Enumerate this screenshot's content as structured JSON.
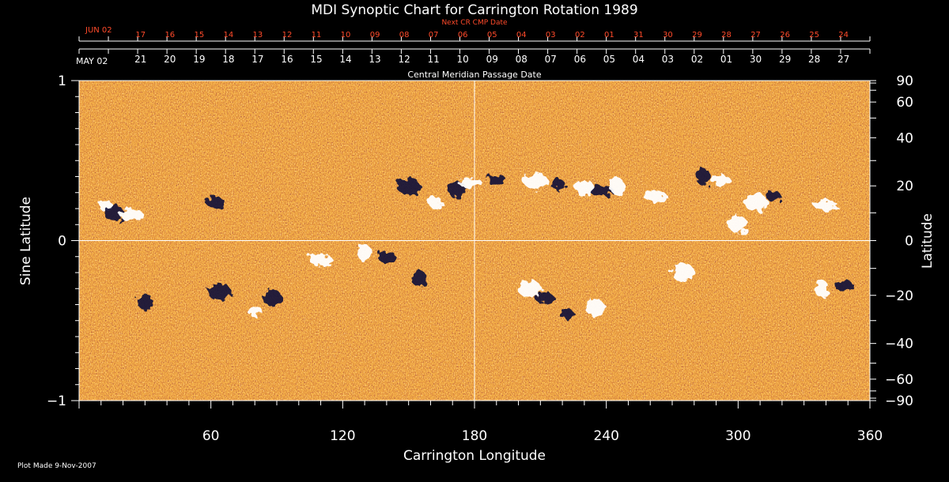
{
  "chart_data": {
    "type": "heatmap",
    "title": "MDI Synoptic Chart for Carrington Rotation 1989",
    "xlabel": "Carrington Longitude",
    "ylabel": "Sine Latitude",
    "ylabel_right": "Latitude",
    "xlim": [
      0,
      360
    ],
    "ylim": [
      -1,
      1
    ],
    "x_ticks": [
      {
        "value": 60,
        "label": "60"
      },
      {
        "value": 120,
        "label": "120"
      },
      {
        "value": 180,
        "label": "180"
      },
      {
        "value": 240,
        "label": "240"
      },
      {
        "value": 300,
        "label": "300"
      },
      {
        "value": 360,
        "label": "360"
      }
    ],
    "y_ticks": [
      {
        "value": 1,
        "label": "1"
      },
      {
        "value": 0,
        "label": "0"
      },
      {
        "value": -1,
        "label": "−1"
      }
    ],
    "lat_ticks": [
      {
        "value": 90,
        "label": "90"
      },
      {
        "value": 60,
        "label": "60"
      },
      {
        "value": 40,
        "label": "40"
      },
      {
        "value": 20,
        "label": "20"
      },
      {
        "value": 0,
        "label": "0"
      },
      {
        "value": -20,
        "label": "−20"
      },
      {
        "value": -40,
        "label": "−40"
      },
      {
        "value": -60,
        "label": "−60"
      },
      {
        "value": -90,
        "label": "−90"
      }
    ],
    "reference_lines": {
      "longitude": 180,
      "sine_latitude": 0
    },
    "top_axis_label": "Central Meridian Passage Date",
    "cmp_month_label": "MAY 02",
    "cmp_dates": [
      "21",
      "20",
      "19",
      "18",
      "17",
      "16",
      "15",
      "14",
      "13",
      "12",
      "11",
      "10",
      "09",
      "08",
      "07",
      "06",
      "05",
      "04",
      "03",
      "02",
      "01",
      "30",
      "29",
      "28",
      "27"
    ],
    "next_cr_label": "Next CR CMP Date",
    "next_cr_month_label": "JUN 02",
    "next_cr_dates": [
      "17",
      "16",
      "15",
      "14",
      "13",
      "12",
      "11",
      "10",
      "09",
      "08",
      "07",
      "06",
      "05",
      "04",
      "03",
      "02",
      "01",
      "31",
      "30",
      "29",
      "28",
      "27",
      "26",
      "25",
      "24"
    ],
    "colormap": [
      "#11113a",
      "#8a1a10",
      "#ff7a18",
      "#ffe9a8",
      "#ffffff"
    ],
    "active_regions": [
      {
        "lon": 12,
        "sinlat": 0.22,
        "polarity": "positive"
      },
      {
        "lon": 16,
        "sinlat": 0.17,
        "polarity": "negative"
      },
      {
        "lon": 24,
        "sinlat": 0.16,
        "polarity": "positive"
      },
      {
        "lon": 30,
        "sinlat": -0.38,
        "polarity": "negative"
      },
      {
        "lon": 62,
        "sinlat": 0.24,
        "polarity": "negative"
      },
      {
        "lon": 64,
        "sinlat": -0.32,
        "polarity": "negative"
      },
      {
        "lon": 80,
        "sinlat": -0.44,
        "polarity": "positive"
      },
      {
        "lon": 88,
        "sinlat": -0.36,
        "polarity": "negative"
      },
      {
        "lon": 110,
        "sinlat": -0.12,
        "polarity": "positive"
      },
      {
        "lon": 130,
        "sinlat": -0.08,
        "polarity": "positive"
      },
      {
        "lon": 140,
        "sinlat": -0.1,
        "polarity": "negative"
      },
      {
        "lon": 150,
        "sinlat": 0.34,
        "polarity": "negative"
      },
      {
        "lon": 162,
        "sinlat": 0.24,
        "polarity": "positive"
      },
      {
        "lon": 172,
        "sinlat": 0.32,
        "polarity": "negative"
      },
      {
        "lon": 178,
        "sinlat": 0.36,
        "polarity": "positive"
      },
      {
        "lon": 155,
        "sinlat": -0.24,
        "polarity": "negative"
      },
      {
        "lon": 190,
        "sinlat": 0.38,
        "polarity": "negative"
      },
      {
        "lon": 208,
        "sinlat": 0.37,
        "polarity": "positive"
      },
      {
        "lon": 218,
        "sinlat": 0.35,
        "polarity": "negative"
      },
      {
        "lon": 230,
        "sinlat": 0.33,
        "polarity": "positive"
      },
      {
        "lon": 238,
        "sinlat": 0.31,
        "polarity": "negative"
      },
      {
        "lon": 245,
        "sinlat": 0.34,
        "polarity": "positive"
      },
      {
        "lon": 212,
        "sinlat": -0.36,
        "polarity": "negative"
      },
      {
        "lon": 205,
        "sinlat": -0.3,
        "polarity": "positive"
      },
      {
        "lon": 222,
        "sinlat": -0.46,
        "polarity": "negative"
      },
      {
        "lon": 235,
        "sinlat": -0.42,
        "polarity": "positive"
      },
      {
        "lon": 262,
        "sinlat": 0.28,
        "polarity": "positive"
      },
      {
        "lon": 284,
        "sinlat": 0.4,
        "polarity": "negative"
      },
      {
        "lon": 292,
        "sinlat": 0.38,
        "polarity": "positive"
      },
      {
        "lon": 308,
        "sinlat": 0.24,
        "polarity": "positive"
      },
      {
        "lon": 316,
        "sinlat": 0.28,
        "polarity": "negative"
      },
      {
        "lon": 300,
        "sinlat": 0.1,
        "polarity": "positive"
      },
      {
        "lon": 340,
        "sinlat": 0.22,
        "polarity": "positive"
      },
      {
        "lon": 338,
        "sinlat": -0.3,
        "polarity": "positive"
      },
      {
        "lon": 348,
        "sinlat": -0.28,
        "polarity": "negative"
      },
      {
        "lon": 275,
        "sinlat": -0.2,
        "polarity": "positive"
      }
    ],
    "grid": false
  },
  "footer": {
    "plot_made": "Plot Made  9-Nov-2007"
  }
}
